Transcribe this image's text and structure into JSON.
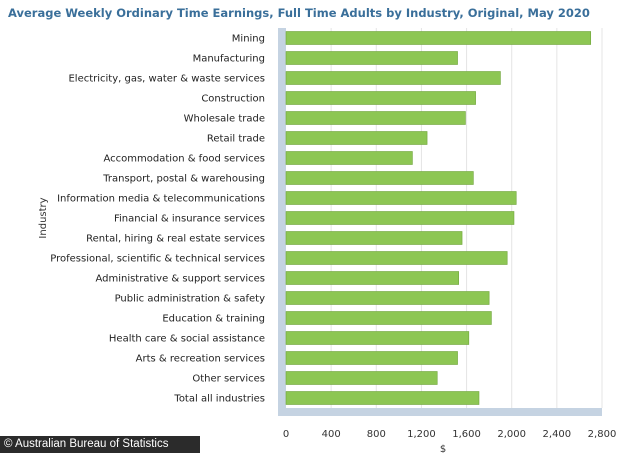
{
  "credit": "© Australian Bureau of Statistics",
  "chart_data": {
    "type": "bar",
    "orientation": "horizontal",
    "title": "Average Weekly Ordinary Time Earnings, Full Time Adults by Industry, Original, May 2020",
    "xlabel": "$",
    "ylabel": "Industry",
    "xlim": [
      0,
      2800
    ],
    "xticks": [
      "0",
      "400",
      "800",
      "1,200",
      "1,600",
      "2,000",
      "2,400",
      "2,800"
    ],
    "grid": true,
    "bar_color": "#8dc653",
    "categories": [
      "Mining",
      "Manufacturing",
      "Electricity, gas, water & waste services",
      "Construction",
      "Wholesale trade",
      "Retail trade",
      "Accommodation & food services",
      "Transport, postal & warehousing",
      "Information media & telecommunications",
      "Financial & insurance services",
      "Rental, hiring & real estate services",
      "Professional, scientific & technical services",
      "Administrative & support services",
      "Public administration & safety",
      "Education & training",
      "Health care & social assistance",
      "Arts & recreation services",
      "Other services",
      "Total all industries"
    ],
    "values": [
      2700,
      1520,
      1900,
      1680,
      1590,
      1250,
      1120,
      1660,
      2040,
      2020,
      1560,
      1960,
      1530,
      1800,
      1820,
      1620,
      1520,
      1340,
      1710
    ]
  }
}
